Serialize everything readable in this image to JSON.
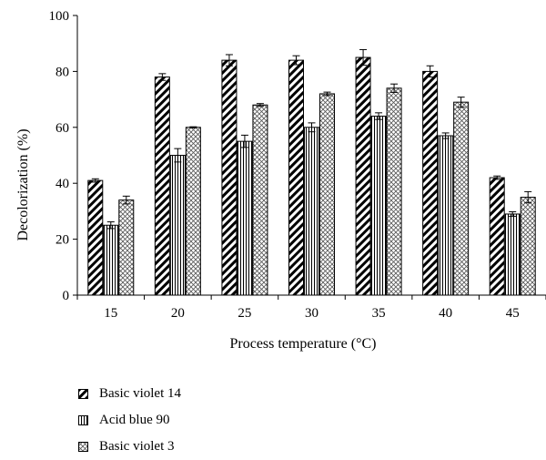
{
  "chart_data": {
    "type": "bar",
    "categories": [
      "15",
      "20",
      "25",
      "30",
      "35",
      "40",
      "45"
    ],
    "series": [
      {
        "name": "Basic violet 14",
        "values": [
          41,
          78,
          84,
          84,
          85,
          80,
          42
        ],
        "errors": [
          0.6,
          1.2,
          2.0,
          1.6,
          2.8,
          2.0,
          0.6
        ]
      },
      {
        "name": "Acid blue 90",
        "values": [
          25,
          50,
          55,
          60,
          64,
          57,
          29
        ],
        "errors": [
          1.2,
          2.4,
          2.2,
          1.6,
          1.2,
          1.0,
          0.8
        ]
      },
      {
        "name": "Basic violet 3",
        "values": [
          34,
          60,
          68,
          72,
          74,
          69,
          35
        ],
        "errors": [
          1.4,
          0.2,
          0.5,
          0.6,
          1.5,
          1.8,
          2.0
        ]
      }
    ],
    "series_patterns": [
      "diagonal-hatch",
      "vertical-lines",
      "crosshatch"
    ],
    "xlabel": "Process temperature (°C)",
    "ylabel": "Decolorization (%)",
    "ylim": [
      0,
      100
    ],
    "yticks": [
      "0",
      "20",
      "40",
      "60",
      "80",
      "100"
    ],
    "grid": false,
    "legend_position": "bottom-left"
  }
}
